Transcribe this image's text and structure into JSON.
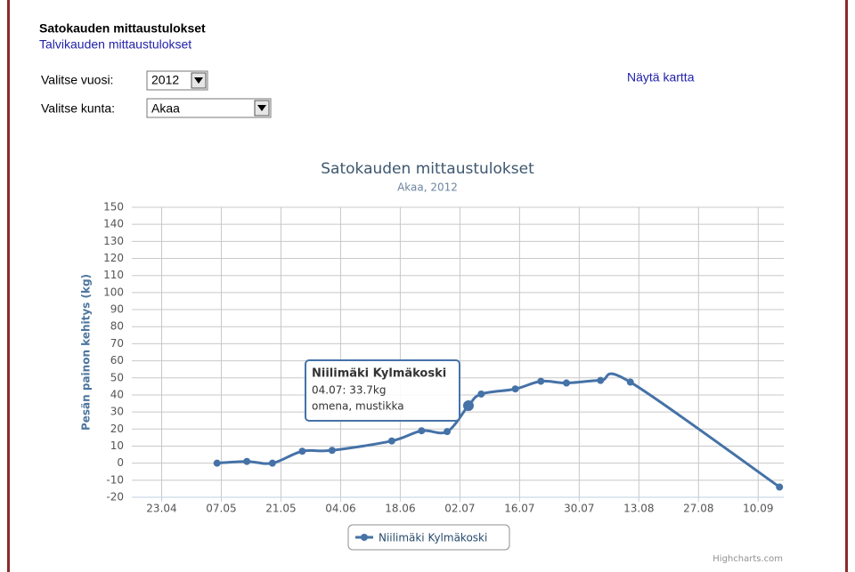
{
  "header": {
    "title": "Satokauden mittaustulokset",
    "link": "Talvikauden mittaustulokset"
  },
  "form": {
    "year_label": "Valitse vuosi:",
    "year": "2012",
    "municipality_label": "Valitse kunta:",
    "municipality": "Akaa",
    "map_link": "Näytä kartta"
  },
  "chart_data": {
    "type": "line",
    "title": "Satokauden mittaustulokset",
    "subtitle": "Akaa, 2012",
    "y_label": "Pesän painon kehitys (kg)",
    "x": [
      "06.05",
      "13.05",
      "19.05",
      "26.05",
      "02.06",
      "16.06",
      "23.06",
      "29.06",
      "04.07",
      "07.07",
      "15.07",
      "21.07",
      "27.07",
      "04.08",
      "11.08",
      "15.09"
    ],
    "series": [
      {
        "name": "Niilimäki Kylmäkoski",
        "color": "#4572a7",
        "values": [
          0,
          1,
          0,
          7,
          7.5,
          13,
          19,
          18.5,
          33.7,
          40.5,
          43.5,
          48,
          47,
          48.5,
          47.5,
          -14
        ]
      }
    ],
    "xlim": [
      "16.04",
      "16.09"
    ],
    "xticks": [
      "23.04",
      "07.05",
      "21.05",
      "04.06",
      "18.06",
      "02.07",
      "16.07",
      "30.07",
      "13.08",
      "27.08",
      "10.09"
    ],
    "ylim": [
      -20,
      150
    ],
    "yticks": [
      -20,
      -10,
      0,
      10,
      20,
      30,
      40,
      50,
      60,
      70,
      80,
      90,
      100,
      110,
      120,
      130,
      140,
      150
    ],
    "grid": true,
    "tooltip": {
      "point": 8,
      "title": "Niilimäki Kylmäkoski",
      "lines": [
        "04.07: 33.7kg",
        "omena, mustikka"
      ]
    },
    "credit": "Highcharts.com"
  }
}
